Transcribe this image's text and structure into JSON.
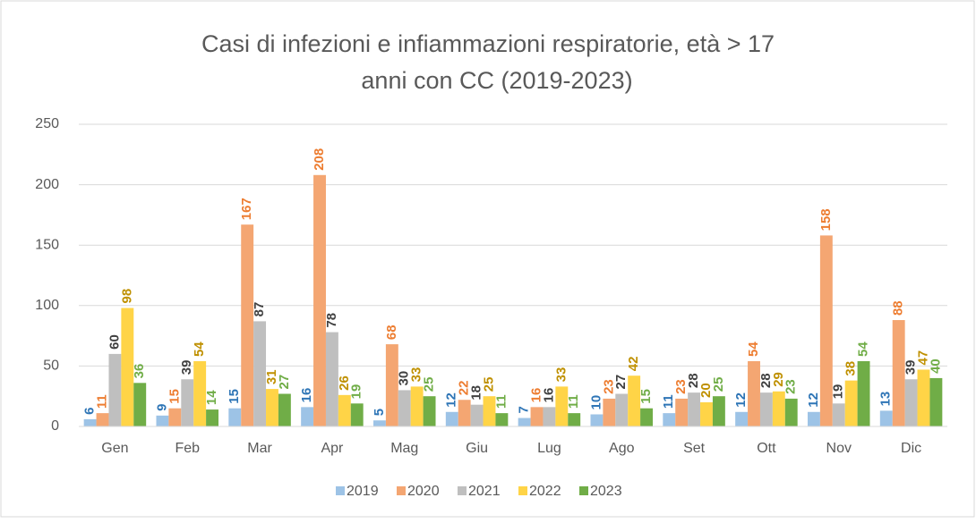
{
  "chart_data": {
    "type": "bar",
    "title": [
      "Casi di infezioni e infiammazioni respiratorie, età > 17",
      "anni con CC (2019-2023)"
    ],
    "categories": [
      "Gen",
      "Feb",
      "Mar",
      "Apr",
      "Mag",
      "Giu",
      "Lug",
      "Ago",
      "Set",
      "Ott",
      "Nov",
      "Dic"
    ],
    "series": [
      {
        "name": "2019",
        "color": "#9dc3e6",
        "label_color": "#2e75b6",
        "values": [
          6,
          9,
          15,
          16,
          5,
          12,
          7,
          10,
          11,
          12,
          12,
          13
        ]
      },
      {
        "name": "2020",
        "color": "#f4a672",
        "label_color": "#ed7d31",
        "values": [
          11,
          15,
          167,
          208,
          68,
          22,
          16,
          23,
          23,
          54,
          158,
          88
        ]
      },
      {
        "name": "2021",
        "color": "#bfbfbf",
        "label_color": "#404040",
        "values": [
          60,
          39,
          87,
          78,
          30,
          18,
          16,
          27,
          28,
          28,
          19,
          39
        ]
      },
      {
        "name": "2022",
        "color": "#ffd447",
        "label_color": "#bf9000",
        "values": [
          98,
          54,
          31,
          26,
          33,
          25,
          33,
          42,
          20,
          29,
          38,
          47
        ]
      },
      {
        "name": "2023",
        "color": "#70ad47",
        "label_color": "#70ad47",
        "values": [
          36,
          14,
          27,
          19,
          25,
          11,
          11,
          15,
          25,
          23,
          54,
          40
        ]
      }
    ],
    "ylim": [
      0,
      250
    ],
    "yticks": [
      0,
      50,
      100,
      150,
      200,
      250
    ],
    "grid": true,
    "legend": "bottom"
  }
}
